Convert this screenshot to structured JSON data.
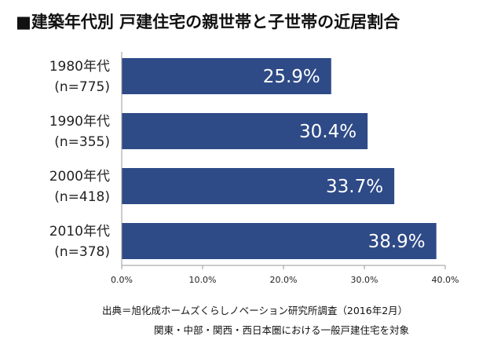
{
  "title": "■建築年代別 戸建住宅の親世帯と子世帯の近居割合",
  "colors": {
    "bar": "#2e4a87",
    "axis": "#999999",
    "label_text": "#ffffff"
  },
  "chart_data": {
    "type": "bar",
    "orientation": "horizontal",
    "categories": [
      {
        "name": "1980年代",
        "n": "(n=775)"
      },
      {
        "name": "1990年代",
        "n": "(n=355)"
      },
      {
        "name": "2000年代",
        "n": "(n=418)"
      },
      {
        "name": "2010年代",
        "n": "(n=378)"
      }
    ],
    "values": [
      25.9,
      30.4,
      33.7,
      38.9
    ],
    "value_labels": [
      "25.9%",
      "30.4%",
      "33.7%",
      "38.9%"
    ],
    "xlim": [
      0,
      40
    ],
    "xticks": [
      0,
      10,
      20,
      30,
      40
    ],
    "xtick_labels": [
      "0.0%",
      "10.0%",
      "20.0%",
      "30.0%",
      "40.0%"
    ],
    "grid": false,
    "legend": "none"
  },
  "notes": [
    "出典＝旭化成ホームズくらしノベーション研究所調査（2016年2月）",
    "関東・中部・関西・西日本圏における一般戸建住宅を対象"
  ]
}
